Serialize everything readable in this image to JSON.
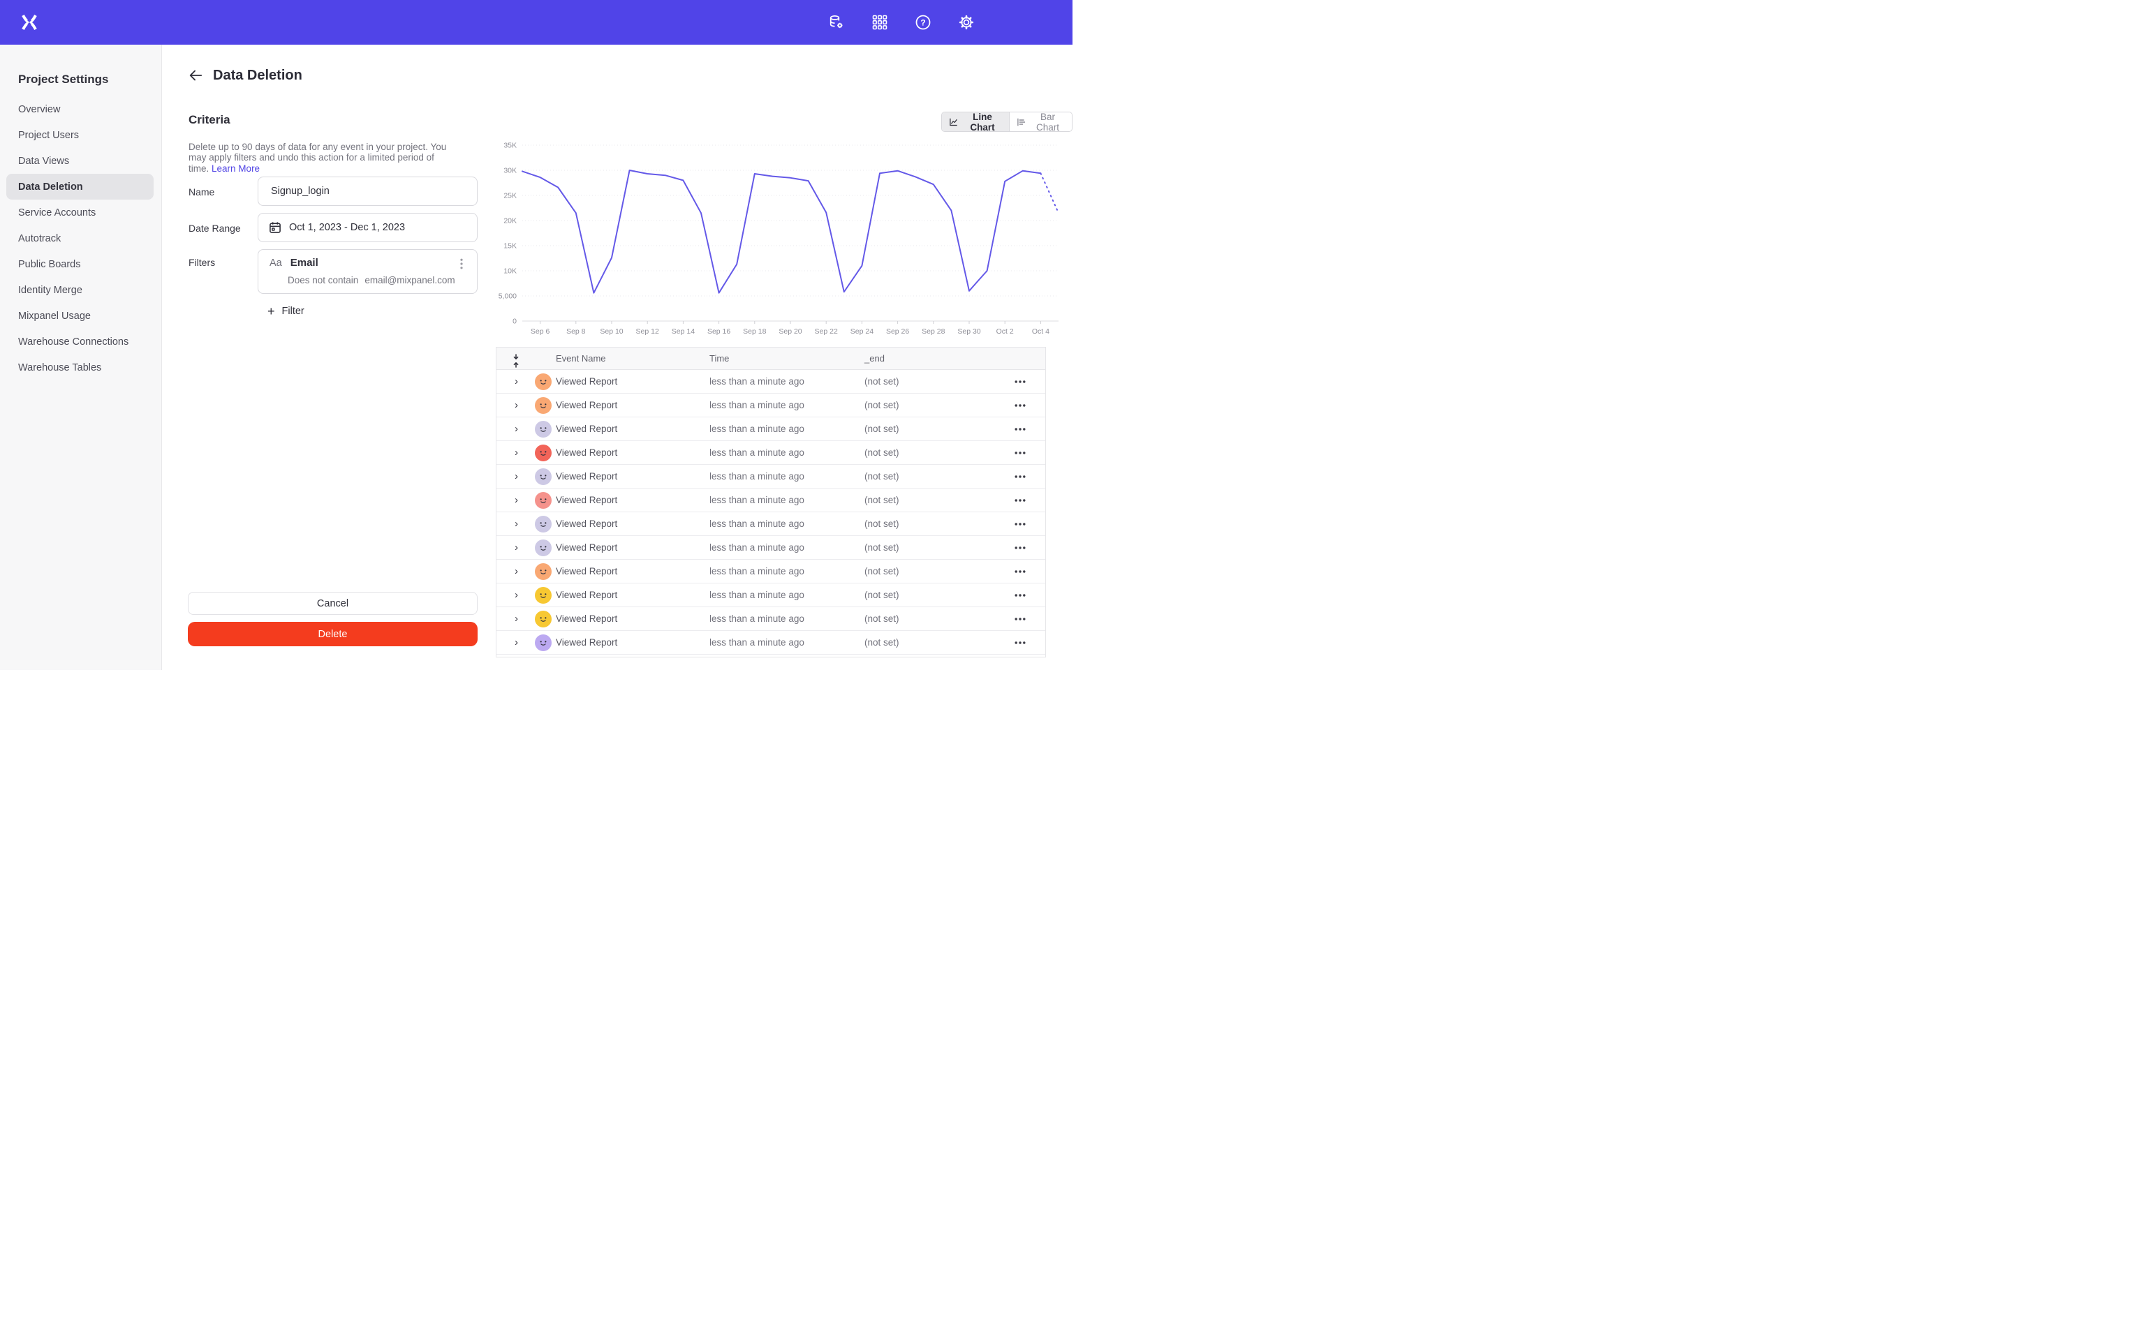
{
  "topbar": {
    "bg_color": "#5044e8",
    "logo_icon": "mixpanel-logo",
    "icons": [
      "data-management-icon",
      "apps-grid-icon",
      "help-icon",
      "settings-gear-icon"
    ]
  },
  "sidebar": {
    "title": "Project Settings",
    "items": [
      {
        "label": "Overview",
        "active": false
      },
      {
        "label": "Project Users",
        "active": false
      },
      {
        "label": "Data Views",
        "active": false
      },
      {
        "label": "Data Deletion",
        "active": true
      },
      {
        "label": "Service Accounts",
        "active": false
      },
      {
        "label": "Autotrack",
        "active": false
      },
      {
        "label": "Public Boards",
        "active": false
      },
      {
        "label": "Identity Merge",
        "active": false
      },
      {
        "label": "Mixpanel Usage",
        "active": false
      },
      {
        "label": "Warehouse Connections",
        "active": false
      },
      {
        "label": "Warehouse Tables",
        "active": false
      }
    ]
  },
  "page": {
    "title": "Data Deletion",
    "back_icon": "arrow-left-icon"
  },
  "criteria": {
    "heading": "Criteria",
    "description": "Delete up to 90 days of data for any event in your project. You may apply filters and undo this action for a limited period of time.",
    "link_label": "Learn More",
    "link_color": "#5246e5",
    "name_label": "Name",
    "name_value": "Signup_login",
    "date_label": "Date Range",
    "date_value": "Oct 1, 2023 - Dec 1, 2023",
    "filters_label": "Filters",
    "filter": {
      "type_label": "Aa",
      "property": "Email",
      "operator": "Does not contain",
      "value": "email@mixpanel.com",
      "menu_icon": "kebab-vertical-icon"
    },
    "add_filter_label": "Filter",
    "add_filter_icon": "plus-icon"
  },
  "actions": {
    "cancel_label": "Cancel",
    "delete_label": "Delete",
    "delete_color": "#f43c1e"
  },
  "chart_toggle": {
    "options": [
      {
        "label": "Line Chart",
        "icon": "line-chart-icon",
        "active": true
      },
      {
        "label": "Bar Chart",
        "icon": "bar-chart-icon",
        "active": false
      }
    ]
  },
  "chart_data": {
    "type": "line",
    "grid": true,
    "legend": "none",
    "line_color": "#6459e8",
    "ylim": [
      0,
      35000
    ],
    "x": [
      "Sep 5",
      "Sep 6",
      "Sep 7",
      "Sep 8",
      "Sep 9",
      "Sep 10",
      "Sep 11",
      "Sep 12",
      "Sep 13",
      "Sep 14",
      "Sep 15",
      "Sep 16",
      "Sep 17",
      "Sep 18",
      "Sep 19",
      "Sep 20",
      "Sep 21",
      "Sep 22",
      "Sep 23",
      "Sep 24",
      "Sep 25",
      "Sep 26",
      "Sep 27",
      "Sep 28",
      "Sep 29",
      "Sep 30",
      "Oct 1",
      "Oct 2",
      "Oct 3",
      "Oct 4",
      "Oct 5"
    ],
    "values": [
      29800,
      28600,
      26600,
      21500,
      5600,
      12600,
      30000,
      29300,
      29000,
      28000,
      21500,
      5600,
      11300,
      29300,
      28800,
      28500,
      27900,
      21600,
      5800,
      11000,
      29400,
      29900,
      28700,
      27200,
      22000,
      6000,
      10000,
      27800,
      29900,
      29400,
      21500
    ],
    "projection_from_index": 29,
    "y_ticks": [
      {
        "value": 0,
        "label": "0"
      },
      {
        "value": 5000,
        "label": "5,000"
      },
      {
        "value": 10000,
        "label": "10K"
      },
      {
        "value": 15000,
        "label": "15K"
      },
      {
        "value": 20000,
        "label": "20K"
      },
      {
        "value": 25000,
        "label": "25K"
      },
      {
        "value": 30000,
        "label": "30K"
      },
      {
        "value": 35000,
        "label": "35K"
      }
    ],
    "x_ticks": [
      {
        "index": 1,
        "label": "Sep 6"
      },
      {
        "index": 3,
        "label": "Sep 8"
      },
      {
        "index": 5,
        "label": "Sep 10"
      },
      {
        "index": 7,
        "label": "Sep 12"
      },
      {
        "index": 9,
        "label": "Sep 14"
      },
      {
        "index": 11,
        "label": "Sep 16"
      },
      {
        "index": 13,
        "label": "Sep 18"
      },
      {
        "index": 15,
        "label": "Sep 20"
      },
      {
        "index": 17,
        "label": "Sep 22"
      },
      {
        "index": 19,
        "label": "Sep 24"
      },
      {
        "index": 21,
        "label": "Sep 26"
      },
      {
        "index": 23,
        "label": "Sep 28"
      },
      {
        "index": 25,
        "label": "Sep 30"
      },
      {
        "index": 27,
        "label": "Oct 2"
      },
      {
        "index": 29,
        "label": "Oct 4"
      }
    ]
  },
  "events_table": {
    "sort_icon": "sort-arrows-icon",
    "row_menu_icon": "ellipsis-icon",
    "columns": [
      "Event Name",
      "Time",
      "_end"
    ],
    "rows": [
      {
        "event": "Viewed Report",
        "time": "less than a minute ago",
        "end": "(not set)",
        "avatar_color": "#f9a873"
      },
      {
        "event": "Viewed Report",
        "time": "less than a minute ago",
        "end": "(not set)",
        "avatar_color": "#f9a873"
      },
      {
        "event": "Viewed Report",
        "time": "less than a minute ago",
        "end": "(not set)",
        "avatar_color": "#cdc9e5"
      },
      {
        "event": "Viewed Report",
        "time": "less than a minute ago",
        "end": "(not set)",
        "avatar_color": "#f26459"
      },
      {
        "event": "Viewed Report",
        "time": "less than a minute ago",
        "end": "(not set)",
        "avatar_color": "#cdc9e5"
      },
      {
        "event": "Viewed Report",
        "time": "less than a minute ago",
        "end": "(not set)",
        "avatar_color": "#f5928c"
      },
      {
        "event": "Viewed Report",
        "time": "less than a minute ago",
        "end": "(not set)",
        "avatar_color": "#cdc9e5"
      },
      {
        "event": "Viewed Report",
        "time": "less than a minute ago",
        "end": "(not set)",
        "avatar_color": "#cdc9e5"
      },
      {
        "event": "Viewed Report",
        "time": "less than a minute ago",
        "end": "(not set)",
        "avatar_color": "#f9a873"
      },
      {
        "event": "Viewed Report",
        "time": "less than a minute ago",
        "end": "(not set)",
        "avatar_color": "#f7c832"
      },
      {
        "event": "Viewed Report",
        "time": "less than a minute ago",
        "end": "(not set)",
        "avatar_color": "#f7c832"
      },
      {
        "event": "Viewed Report",
        "time": "less than a minute ago",
        "end": "(not set)",
        "avatar_color": "#bca9f1"
      },
      {
        "event": "",
        "time": "",
        "end": "",
        "avatar_color": "#f5a9a2",
        "partial": true
      }
    ]
  }
}
